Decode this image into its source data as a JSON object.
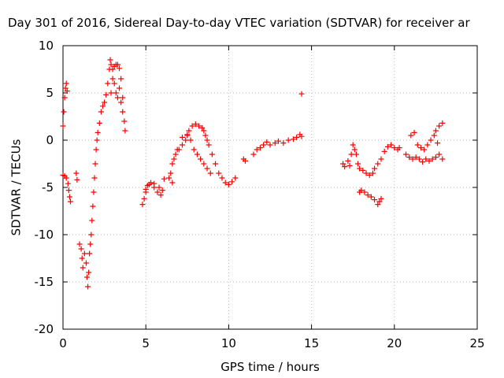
{
  "chart_data": {
    "type": "scatter",
    "title": "Day 301 of 2016, Sidereal Day-to-day VTEC variation (SDTVAR) for receiver ar",
    "xlabel": "GPS time / hours",
    "ylabel": "SDTVAR / TECUs",
    "xlim": [
      0,
      25
    ],
    "ylim": [
      -20,
      10
    ],
    "xticks": [
      0,
      5,
      10,
      15,
      20,
      25
    ],
    "yticks": [
      -20,
      -15,
      -10,
      -5,
      0,
      5,
      10
    ],
    "grid": true,
    "marker": "+",
    "color": "#ff0000",
    "series": [
      {
        "name": "SDTVAR",
        "points": [
          [
            0.0,
            1.5
          ],
          [
            0.05,
            3.0
          ],
          [
            0.1,
            4.5
          ],
          [
            0.15,
            5.5
          ],
          [
            0.2,
            6.0
          ],
          [
            0.25,
            5.2
          ],
          [
            0.0,
            -3.7
          ],
          [
            0.1,
            -3.8
          ],
          [
            0.2,
            -4.0
          ],
          [
            0.3,
            -4.6
          ],
          [
            0.35,
            -5.3
          ],
          [
            0.4,
            -6.0
          ],
          [
            0.45,
            -6.5
          ],
          [
            0.8,
            -3.5
          ],
          [
            0.85,
            -4.2
          ],
          [
            1.0,
            -11.0
          ],
          [
            1.1,
            -11.5
          ],
          [
            1.15,
            -12.5
          ],
          [
            1.2,
            -13.5
          ],
          [
            1.3,
            -12.0
          ],
          [
            1.4,
            -13.0
          ],
          [
            1.45,
            -14.5
          ],
          [
            1.5,
            -15.5
          ],
          [
            1.55,
            -14.0
          ],
          [
            1.6,
            -12.0
          ],
          [
            1.65,
            -11.0
          ],
          [
            1.7,
            -10.0
          ],
          [
            1.75,
            -8.5
          ],
          [
            1.8,
            -7.0
          ],
          [
            1.85,
            -5.5
          ],
          [
            1.9,
            -4.0
          ],
          [
            1.95,
            -2.5
          ],
          [
            2.0,
            -1.0
          ],
          [
            2.05,
            0.0
          ],
          [
            2.1,
            0.8
          ],
          [
            2.2,
            1.8
          ],
          [
            2.3,
            3.0
          ],
          [
            2.4,
            3.6
          ],
          [
            2.5,
            4.0
          ],
          [
            2.6,
            4.8
          ],
          [
            2.7,
            6.0
          ],
          [
            2.8,
            7.5
          ],
          [
            2.85,
            8.5
          ],
          [
            2.9,
            8.0
          ],
          [
            3.0,
            7.5
          ],
          [
            3.1,
            7.8
          ],
          [
            3.2,
            8.0
          ],
          [
            3.3,
            8.0
          ],
          [
            3.4,
            7.6
          ],
          [
            3.5,
            6.5
          ],
          [
            3.6,
            4.5
          ],
          [
            3.7,
            2.0
          ],
          [
            3.75,
            1.0
          ],
          [
            2.9,
            5.0
          ],
          [
            3.0,
            6.5
          ],
          [
            3.1,
            6.0
          ],
          [
            3.2,
            5.0
          ],
          [
            3.3,
            4.5
          ],
          [
            3.4,
            5.5
          ],
          [
            3.5,
            4.0
          ],
          [
            3.6,
            3.0
          ],
          [
            4.8,
            -6.8
          ],
          [
            4.9,
            -6.2
          ],
          [
            5.0,
            -5.5
          ],
          [
            5.1,
            -4.8
          ],
          [
            5.3,
            -4.5
          ],
          [
            5.5,
            -5.0
          ],
          [
            5.7,
            -5.5
          ],
          [
            5.9,
            -5.8
          ],
          [
            6.0,
            -5.3
          ],
          [
            5.0,
            -5.2
          ],
          [
            5.2,
            -4.7
          ],
          [
            5.5,
            -4.6
          ],
          [
            5.8,
            -5.0
          ],
          [
            6.1,
            -4.1
          ],
          [
            6.4,
            -4.0
          ],
          [
            6.5,
            -3.5
          ],
          [
            6.6,
            -2.5
          ],
          [
            6.7,
            -2.0
          ],
          [
            6.8,
            -1.5
          ],
          [
            7.0,
            -1.0
          ],
          [
            7.2,
            -0.5
          ],
          [
            7.4,
            0.0
          ],
          [
            7.5,
            0.5
          ],
          [
            7.6,
            1.0
          ],
          [
            7.8,
            1.5
          ],
          [
            8.0,
            1.7
          ],
          [
            8.2,
            1.5
          ],
          [
            8.4,
            1.3
          ],
          [
            8.5,
            1.0
          ],
          [
            8.6,
            0.5
          ],
          [
            8.7,
            0.0
          ],
          [
            8.8,
            -0.5
          ],
          [
            6.6,
            -4.5
          ],
          [
            6.9,
            -1.0
          ],
          [
            7.2,
            0.3
          ],
          [
            7.5,
            0.6
          ],
          [
            7.7,
            0.0
          ],
          [
            7.9,
            -1.0
          ],
          [
            8.1,
            -1.5
          ],
          [
            8.3,
            -2.0
          ],
          [
            8.5,
            -2.5
          ],
          [
            8.7,
            -3.0
          ],
          [
            8.9,
            -3.5
          ],
          [
            9.0,
            -1.5
          ],
          [
            9.2,
            -2.5
          ],
          [
            9.4,
            -3.5
          ],
          [
            9.6,
            -4.0
          ],
          [
            9.8,
            -4.5
          ],
          [
            10.0,
            -4.7
          ],
          [
            10.2,
            -4.4
          ],
          [
            10.4,
            -4.0
          ],
          [
            10.9,
            -2.0
          ],
          [
            11.0,
            -2.2
          ],
          [
            11.5,
            -1.5
          ],
          [
            11.7,
            -1.0
          ],
          [
            11.9,
            -0.8
          ],
          [
            12.1,
            -0.5
          ],
          [
            12.3,
            -0.2
          ],
          [
            12.5,
            -0.5
          ],
          [
            12.8,
            -0.3
          ],
          [
            13.0,
            -0.1
          ],
          [
            13.3,
            -0.3
          ],
          [
            13.6,
            0.0
          ],
          [
            13.9,
            0.1
          ],
          [
            14.1,
            0.3
          ],
          [
            14.3,
            0.6
          ],
          [
            14.4,
            0.4
          ],
          [
            14.4,
            4.9
          ],
          [
            16.9,
            -2.5
          ],
          [
            17.0,
            -2.8
          ],
          [
            17.2,
            -2.2
          ],
          [
            17.3,
            -2.7
          ],
          [
            17.4,
            -1.5
          ],
          [
            17.5,
            -0.5
          ],
          [
            17.6,
            -1.0
          ],
          [
            17.7,
            -1.5
          ],
          [
            17.8,
            -2.5
          ],
          [
            17.9,
            -3.0
          ],
          [
            18.1,
            -3.2
          ],
          [
            18.3,
            -3.5
          ],
          [
            18.5,
            -3.7
          ],
          [
            18.7,
            -3.5
          ],
          [
            18.8,
            -3.0
          ],
          [
            19.0,
            -2.5
          ],
          [
            19.2,
            -2.0
          ],
          [
            19.4,
            -1.2
          ],
          [
            19.6,
            -0.7
          ],
          [
            19.8,
            -0.5
          ],
          [
            20.0,
            -0.8
          ],
          [
            20.2,
            -1.0
          ],
          [
            20.3,
            -0.8
          ],
          [
            17.9,
            -5.5
          ],
          [
            18.0,
            -5.3
          ],
          [
            18.2,
            -5.5
          ],
          [
            18.4,
            -5.8
          ],
          [
            18.6,
            -6.0
          ],
          [
            18.8,
            -6.3
          ],
          [
            19.0,
            -6.8
          ],
          [
            19.1,
            -6.5
          ],
          [
            19.2,
            -6.2
          ],
          [
            20.7,
            -1.5
          ],
          [
            20.9,
            -1.8
          ],
          [
            21.1,
            -2.0
          ],
          [
            21.3,
            -1.8
          ],
          [
            21.5,
            -2.0
          ],
          [
            21.7,
            -2.3
          ],
          [
            21.9,
            -2.0
          ],
          [
            22.1,
            -2.2
          ],
          [
            22.3,
            -2.0
          ],
          [
            22.5,
            -1.8
          ],
          [
            22.7,
            -1.5
          ],
          [
            22.9,
            -2.0
          ],
          [
            21.0,
            0.5
          ],
          [
            21.2,
            0.8
          ],
          [
            21.4,
            -0.5
          ],
          [
            21.6,
            -0.8
          ],
          [
            21.8,
            -1.0
          ],
          [
            22.0,
            -0.5
          ],
          [
            22.2,
            0.0
          ],
          [
            22.4,
            0.5
          ],
          [
            22.5,
            1.0
          ],
          [
            22.7,
            1.5
          ],
          [
            22.9,
            1.8
          ],
          [
            22.6,
            -0.3
          ]
        ]
      }
    ]
  }
}
